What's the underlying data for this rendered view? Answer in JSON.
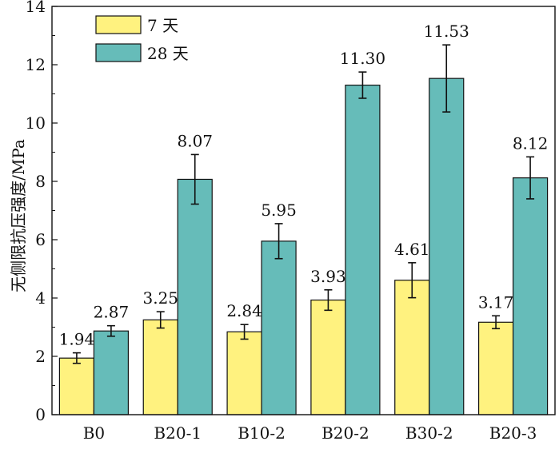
{
  "chart_data": {
    "type": "bar",
    "title": "",
    "xlabel": "",
    "ylabel": "无侧限抗压强度/MPa",
    "categories": [
      "B0",
      "B20-1",
      "B10-2",
      "B20-2",
      "B30-2",
      "B20-3"
    ],
    "ylim": [
      0,
      14
    ],
    "yticks": [
      0,
      2,
      4,
      6,
      8,
      10,
      12,
      14
    ],
    "grid": false,
    "legend_position": "top-left",
    "series": [
      {
        "name": "7 天",
        "color": "#fff27f",
        "values": [
          1.94,
          3.25,
          2.84,
          3.93,
          4.61,
          3.17
        ],
        "labels": [
          "1.94",
          "3.25",
          "2.84",
          "3.93",
          "4.61",
          "3.17"
        ],
        "errors": [
          0.18,
          0.28,
          0.25,
          0.35,
          0.6,
          0.22
        ]
      },
      {
        "name": "28 天",
        "color": "#66bcb9",
        "values": [
          2.87,
          8.07,
          5.95,
          11.3,
          11.53,
          8.12
        ],
        "labels": [
          "2.87",
          "8.07",
          "5.95",
          "11.30",
          "11.53",
          "8.12"
        ],
        "errors": [
          0.18,
          0.85,
          0.6,
          0.45,
          1.15,
          0.72
        ]
      }
    ]
  }
}
